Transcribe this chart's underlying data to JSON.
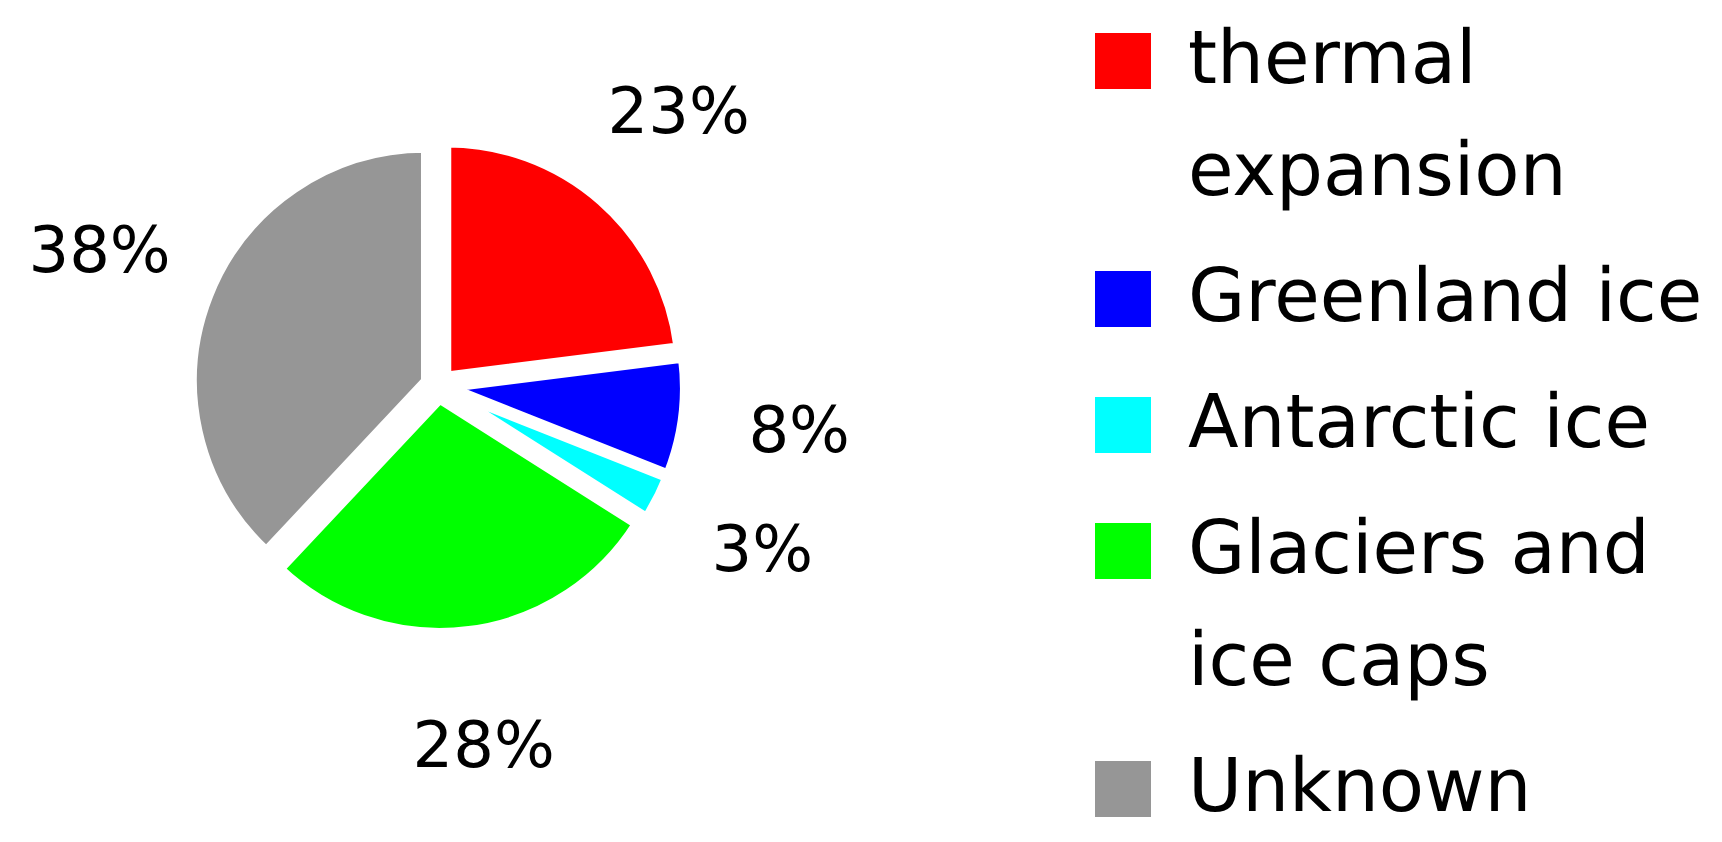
{
  "chart_data": {
    "type": "pie",
    "categories": [
      "thermal expansion",
      "Greenland ice",
      "Antarctic ice",
      "Glaciers and ice caps",
      "Unknown"
    ],
    "values": [
      23,
      8,
      3,
      28,
      38
    ],
    "colors": [
      "#ff0000",
      "#0000ff",
      "#00ffff",
      "#00ff00",
      "#969696"
    ],
    "value_labels": [
      "23%",
      "8%",
      "3%",
      "28%",
      "38%"
    ],
    "legend": "right"
  }
}
